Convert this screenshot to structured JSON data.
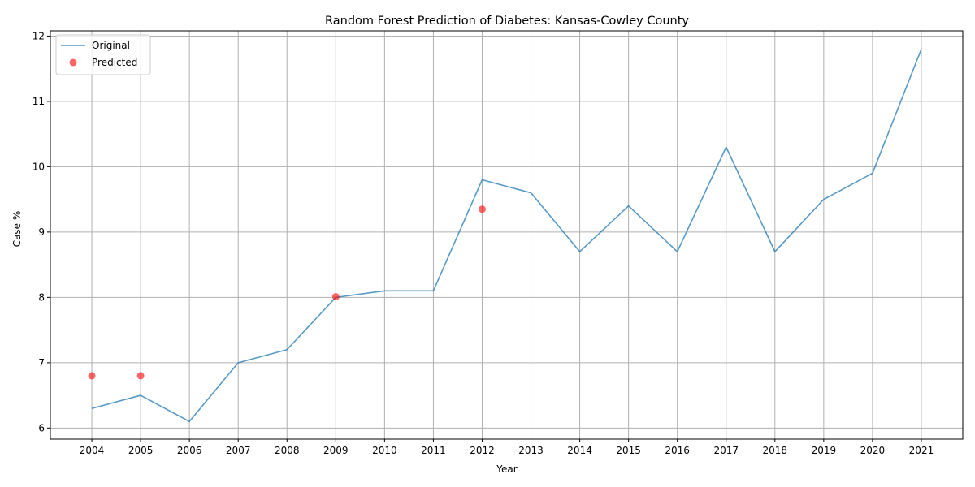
{
  "chart_data": {
    "type": "line",
    "title": "Random Forest Prediction of Diabetes: Kansas-Cowley County",
    "xlabel": "Year",
    "ylabel": "Case %",
    "x": [
      2004,
      2005,
      2006,
      2007,
      2008,
      2009,
      2010,
      2011,
      2012,
      2013,
      2014,
      2015,
      2016,
      2017,
      2018,
      2019,
      2020,
      2021
    ],
    "xlim": [
      2003.15,
      2021.85
    ],
    "ylim": [
      5.83,
      12.08
    ],
    "yticks": [
      6,
      7,
      8,
      9,
      10,
      11,
      12
    ],
    "grid": true,
    "legend_position": "top-left",
    "series": [
      {
        "name": "Original",
        "kind": "line",
        "color": "#1f77b4",
        "x": [
          2004,
          2005,
          2006,
          2007,
          2008,
          2009,
          2010,
          2011,
          2012,
          2013,
          2014,
          2015,
          2016,
          2017,
          2018,
          2019,
          2020,
          2021
        ],
        "values": [
          6.3,
          6.5,
          6.1,
          7.0,
          7.2,
          8.0,
          8.1,
          8.1,
          9.8,
          9.6,
          8.7,
          9.4,
          8.7,
          10.3,
          8.7,
          9.5,
          9.9,
          11.8
        ]
      },
      {
        "name": "Predicted",
        "kind": "scatter",
        "color": "#ff0000",
        "x": [
          2004,
          2005,
          2009,
          2012
        ],
        "values": [
          6.8,
          6.8,
          8.01,
          9.35
        ]
      }
    ]
  }
}
